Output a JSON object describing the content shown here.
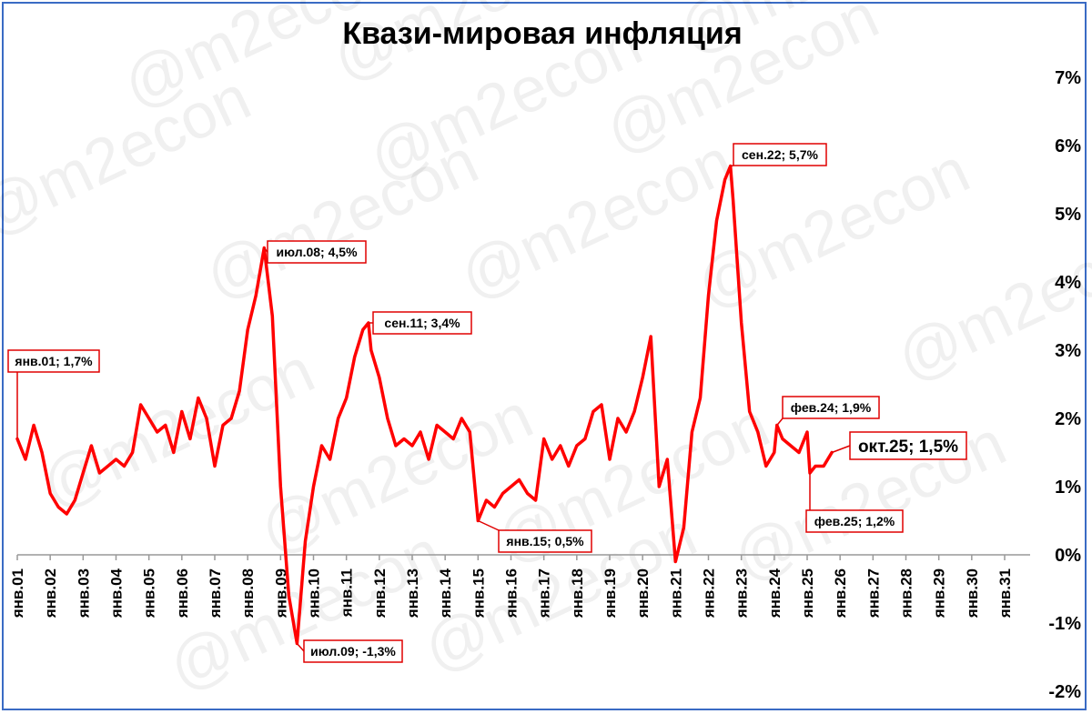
{
  "chart_data": {
    "type": "line",
    "title": "Квази-мировая инфляция",
    "watermark": "@m2econ",
    "xlabel": "",
    "ylabel": "",
    "ylim": [
      -2,
      7
    ],
    "y_ticks": [
      "-2%",
      "-1%",
      "0%",
      "1%",
      "2%",
      "3%",
      "4%",
      "5%",
      "6%",
      "7%"
    ],
    "x_ticks": [
      "янв.01",
      "янв.02",
      "янв.03",
      "янв.04",
      "янв.05",
      "янв.06",
      "янв.07",
      "янв.08",
      "янв.09",
      "янв.10",
      "янв.11",
      "янв.12",
      "янв.13",
      "янв.14",
      "янв.15",
      "янв.16",
      "янв.17",
      "янв.18",
      "янв.19",
      "янв.20",
      "янв.21",
      "янв.22",
      "янв.23",
      "янв.24",
      "янв.25",
      "янв.26",
      "янв.27",
      "янв.28",
      "янв.29",
      "янв.30",
      "янв.31"
    ],
    "grid": false,
    "legend": "none",
    "line_color": "#ff0000",
    "series": [
      {
        "x": [
          2001.0,
          2001.25,
          2001.5,
          2001.75,
          2002.0,
          2002.25,
          2002.5,
          2002.75,
          2003.0,
          2003.25,
          2003.5,
          2003.75,
          2004.0,
          2004.25,
          2004.5,
          2004.75,
          2005.0,
          2005.25,
          2005.5,
          2005.75,
          2006.0,
          2006.25,
          2006.5,
          2006.75,
          2007.0,
          2007.25,
          2007.5,
          2007.75,
          2008.0,
          2008.25,
          2008.5,
          2008.75,
          2009.0,
          2009.25,
          2009.5,
          2009.75,
          2010.0,
          2010.25,
          2010.5,
          2010.75,
          2011.0,
          2011.25,
          2011.5,
          2011.67,
          2011.75,
          2012.0,
          2012.25,
          2012.5,
          2012.75,
          2013.0,
          2013.25,
          2013.5,
          2013.75,
          2014.0,
          2014.25,
          2014.5,
          2014.75,
          2015.0,
          2015.25,
          2015.5,
          2015.75,
          2016.0,
          2016.25,
          2016.5,
          2016.75,
          2017.0,
          2017.25,
          2017.5,
          2017.75,
          2018.0,
          2018.25,
          2018.5,
          2018.75,
          2019.0,
          2019.25,
          2019.5,
          2019.75,
          2020.0,
          2020.25,
          2020.5,
          2020.75,
          2021.0,
          2021.25,
          2021.5,
          2021.75,
          2022.0,
          2022.25,
          2022.5,
          2022.67,
          2022.75,
          2023.0,
          2023.25,
          2023.5,
          2023.75,
          2024.0,
          2024.083,
          2024.25,
          2024.5,
          2024.75,
          2025.0,
          2025.083,
          2025.25,
          2025.5,
          2025.75
        ],
        "values": [
          1.7,
          1.4,
          1.9,
          1.5,
          0.9,
          0.7,
          0.6,
          0.8,
          1.2,
          1.6,
          1.2,
          1.3,
          1.4,
          1.3,
          1.5,
          2.2,
          2.0,
          1.8,
          1.9,
          1.5,
          2.1,
          1.7,
          2.3,
          2.0,
          1.3,
          1.9,
          2.0,
          2.4,
          3.3,
          3.8,
          4.5,
          3.5,
          1.0,
          -0.6,
          -1.3,
          0.2,
          1.0,
          1.6,
          1.4,
          2.0,
          2.3,
          2.9,
          3.3,
          3.4,
          3.0,
          2.6,
          2.0,
          1.6,
          1.7,
          1.6,
          1.8,
          1.4,
          1.9,
          1.8,
          1.7,
          2.0,
          1.8,
          0.5,
          0.8,
          0.7,
          0.9,
          1.0,
          1.1,
          0.9,
          0.8,
          1.7,
          1.4,
          1.6,
          1.3,
          1.6,
          1.7,
          2.1,
          2.2,
          1.4,
          2.0,
          1.8,
          2.1,
          2.6,
          3.2,
          1.0,
          1.4,
          -0.1,
          0.4,
          1.8,
          2.3,
          3.8,
          4.9,
          5.5,
          5.7,
          5.2,
          3.4,
          2.1,
          1.8,
          1.3,
          1.5,
          1.9,
          1.7,
          1.6,
          1.5,
          1.8,
          1.2,
          1.3,
          1.3,
          1.5
        ]
      }
    ],
    "annotations": [
      {
        "x": 2001.0,
        "y": 1.7,
        "label": "янв.01; 1,7%"
      },
      {
        "x": 2008.5,
        "y": 4.5,
        "label": "июл.08; 4,5%"
      },
      {
        "x": 2009.5,
        "y": -1.3,
        "label": "июл.09; -1,3%"
      },
      {
        "x": 2011.67,
        "y": 3.4,
        "label": "сен.11; 3,4%"
      },
      {
        "x": 2015.0,
        "y": 0.5,
        "label": "янв.15; 0,5%"
      },
      {
        "x": 2022.67,
        "y": 5.7,
        "label": "сен.22; 5,7%"
      },
      {
        "x": 2024.083,
        "y": 1.9,
        "label": "фев.24; 1,9%"
      },
      {
        "x": 2025.083,
        "y": 1.2,
        "label": "фев.25; 1,2%"
      },
      {
        "x": 2025.75,
        "y": 1.5,
        "label": "окт.25; 1,5%"
      }
    ]
  }
}
